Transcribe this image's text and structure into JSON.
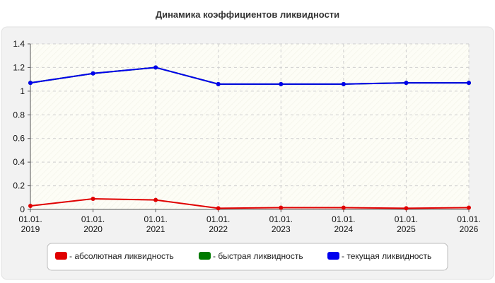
{
  "chart_data": {
    "type": "line",
    "title": "Динамика коэффициентов ликвидности",
    "xlabel": "",
    "ylabel": "",
    "categories": [
      [
        "01.01.",
        "2019"
      ],
      [
        "01.01.",
        "2020"
      ],
      [
        "01.01.",
        "2021"
      ],
      [
        "01.01.",
        "2022"
      ],
      [
        "01.01.",
        "2023"
      ],
      [
        "01.01.",
        "2024"
      ],
      [
        "01.01.",
        "2025"
      ],
      [
        "01.01.",
        "2026"
      ]
    ],
    "ylim": [
      0,
      1.4
    ],
    "yticks": [
      0,
      0.2,
      0.4,
      0.6,
      0.8,
      1,
      1.2,
      1.4
    ],
    "ytick_labels": [
      "0",
      "0.2",
      "0.4",
      "0.6",
      "0.8",
      "1",
      "1.2",
      "1.4"
    ],
    "grid": true,
    "legend_position": "bottom",
    "series": [
      {
        "name": "- абсолютная ликвидность",
        "color": "#e00000",
        "values": [
          0.03,
          0.09,
          0.08,
          0.01,
          0.015,
          0.015,
          0.01,
          0.015
        ]
      },
      {
        "name": "- быстрая ликвидность",
        "color": "#007a00",
        "values": [
          1.07,
          1.15,
          1.2,
          1.06,
          1.06,
          1.06,
          1.07,
          1.07
        ]
      },
      {
        "name": "- текущая ликвидность",
        "color": "#0000ee",
        "values": [
          1.07,
          1.15,
          1.2,
          1.06,
          1.06,
          1.06,
          1.07,
          1.07
        ]
      }
    ],
    "drawn_series_order": [
      1,
      0,
      2
    ]
  }
}
